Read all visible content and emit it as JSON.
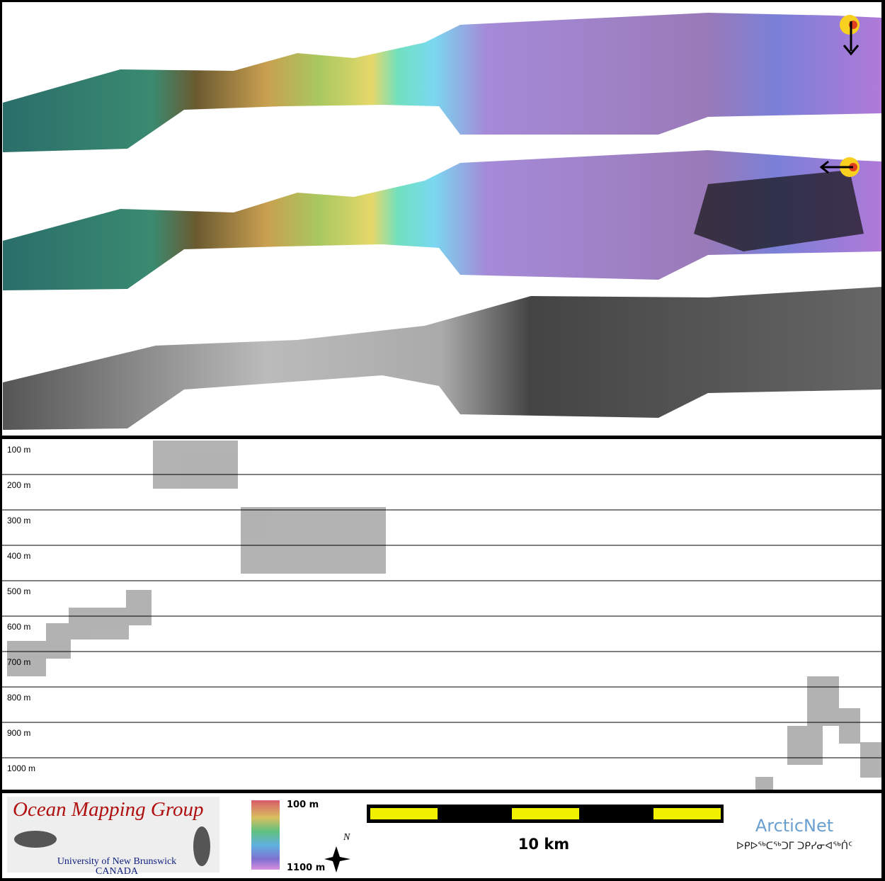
{
  "profile": {
    "ylim": [
      100,
      1090
    ],
    "yticks": [
      {
        "value": 100,
        "label": "100 m"
      },
      {
        "value": 200,
        "label": "200 m"
      },
      {
        "value": 300,
        "label": "300 m"
      },
      {
        "value": 400,
        "label": "400 m"
      },
      {
        "value": 500,
        "label": "500 m"
      },
      {
        "value": 600,
        "label": "600 m"
      },
      {
        "value": 700,
        "label": "700 m"
      },
      {
        "value": 800,
        "label": "800 m"
      },
      {
        "value": 900,
        "label": "900 m"
      },
      {
        "value": 1000,
        "label": "1000 m"
      }
    ]
  },
  "footer": {
    "group_title": "Ocean Mapping Group",
    "university": "University of New Brunswick",
    "country": "CANADA",
    "colorbar": {
      "top_label": "100 m",
      "bottom_label": "1100 m"
    },
    "north": "N",
    "scale_label": "10 km",
    "arcticnet": "ArcticNet",
    "arcticnet_inuktitut": "ᐅᑭᐅᖅᑕᖅᑐᒥ ᑐᑭᓯᓂᐊᖅᑏᑦ"
  }
}
